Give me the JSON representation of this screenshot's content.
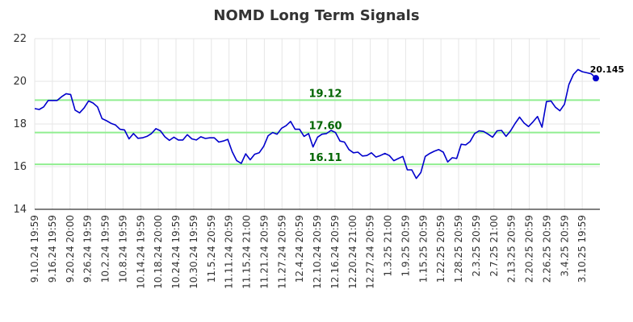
{
  "chart_data": {
    "type": "line",
    "title": "NOMD Long Term Signals",
    "ylim": [
      14,
      22
    ],
    "yticks": [
      "14",
      "16",
      "18",
      "20",
      "22"
    ],
    "xtick_labels": [
      "9.10.24 19:59",
      "9.16.24 19:59",
      "9.20.24 20:00",
      "9.26.24 19:59",
      "10.2.24 19:59",
      "10.8.24 19:59",
      "10.14.24 19:59",
      "10.18.24 20:00",
      "10.24.24 19:59",
      "10.30.24 19:59",
      "11.5.24 20:59",
      "11.11.24 20:59",
      "11.15.24 21:00",
      "11.21.24 20:59",
      "11.27.24 20:59",
      "12.4.24 20:59",
      "12.10.24 20:59",
      "12.16.24 20:59",
      "12.20.24 21:00",
      "12.27.24 20:59",
      "1.3.25 21:00",
      "1.9.25 20:59",
      "1.15.25 20:59",
      "1.22.25 20:59",
      "1.28.25 20:59",
      "2.3.25 20:59",
      "2.7.25 21:00",
      "2.13.25 20:59",
      "2.20.25 20:59",
      "2.26.25 20:59",
      "3.4.25 20:59",
      "3.10.25 19:59"
    ],
    "grid": true,
    "levels": [
      {
        "value": 19.12,
        "label": "19.12"
      },
      {
        "value": 17.6,
        "label": "17.60"
      },
      {
        "value": 16.11,
        "label": "16.11"
      }
    ],
    "series": [
      {
        "color": "#0000cc",
        "values": [
          18.72,
          18.68,
          18.8,
          19.1,
          19.1,
          19.1,
          19.28,
          19.42,
          19.38,
          18.65,
          18.52,
          18.75,
          19.08,
          18.98,
          18.8,
          18.25,
          18.15,
          18.03,
          17.95,
          17.75,
          17.72,
          17.3,
          17.55,
          17.33,
          17.35,
          17.42,
          17.55,
          17.78,
          17.68,
          17.4,
          17.23,
          17.38,
          17.25,
          17.25,
          17.5,
          17.3,
          17.25,
          17.4,
          17.32,
          17.35,
          17.35,
          17.15,
          17.2,
          17.28,
          16.7,
          16.28,
          16.15,
          16.6,
          16.32,
          16.58,
          16.65,
          16.95,
          17.45,
          17.6,
          17.52,
          17.8,
          17.92,
          18.12,
          17.75,
          17.75,
          17.42,
          17.55,
          16.92,
          17.38,
          17.52,
          17.55,
          17.7,
          17.6,
          17.2,
          17.15,
          16.8,
          16.65,
          16.68,
          16.5,
          16.52,
          16.65,
          16.45,
          16.52,
          16.62,
          16.52,
          16.28,
          16.38,
          16.48,
          15.85,
          15.85,
          15.45,
          15.72,
          16.48,
          16.62,
          16.72,
          16.8,
          16.68,
          16.22,
          16.42,
          16.38,
          17.05,
          17.02,
          17.18,
          17.55,
          17.68,
          17.65,
          17.52,
          17.38,
          17.68,
          17.7,
          17.42,
          17.68,
          18.02,
          18.32,
          18.05,
          17.88,
          18.1,
          18.35,
          17.85,
          19.05,
          19.08,
          18.78,
          18.62,
          18.92,
          19.85,
          20.32,
          20.55,
          20.45,
          20.4,
          20.35,
          20.145
        ]
      }
    ],
    "last_value_label": "20.145"
  }
}
